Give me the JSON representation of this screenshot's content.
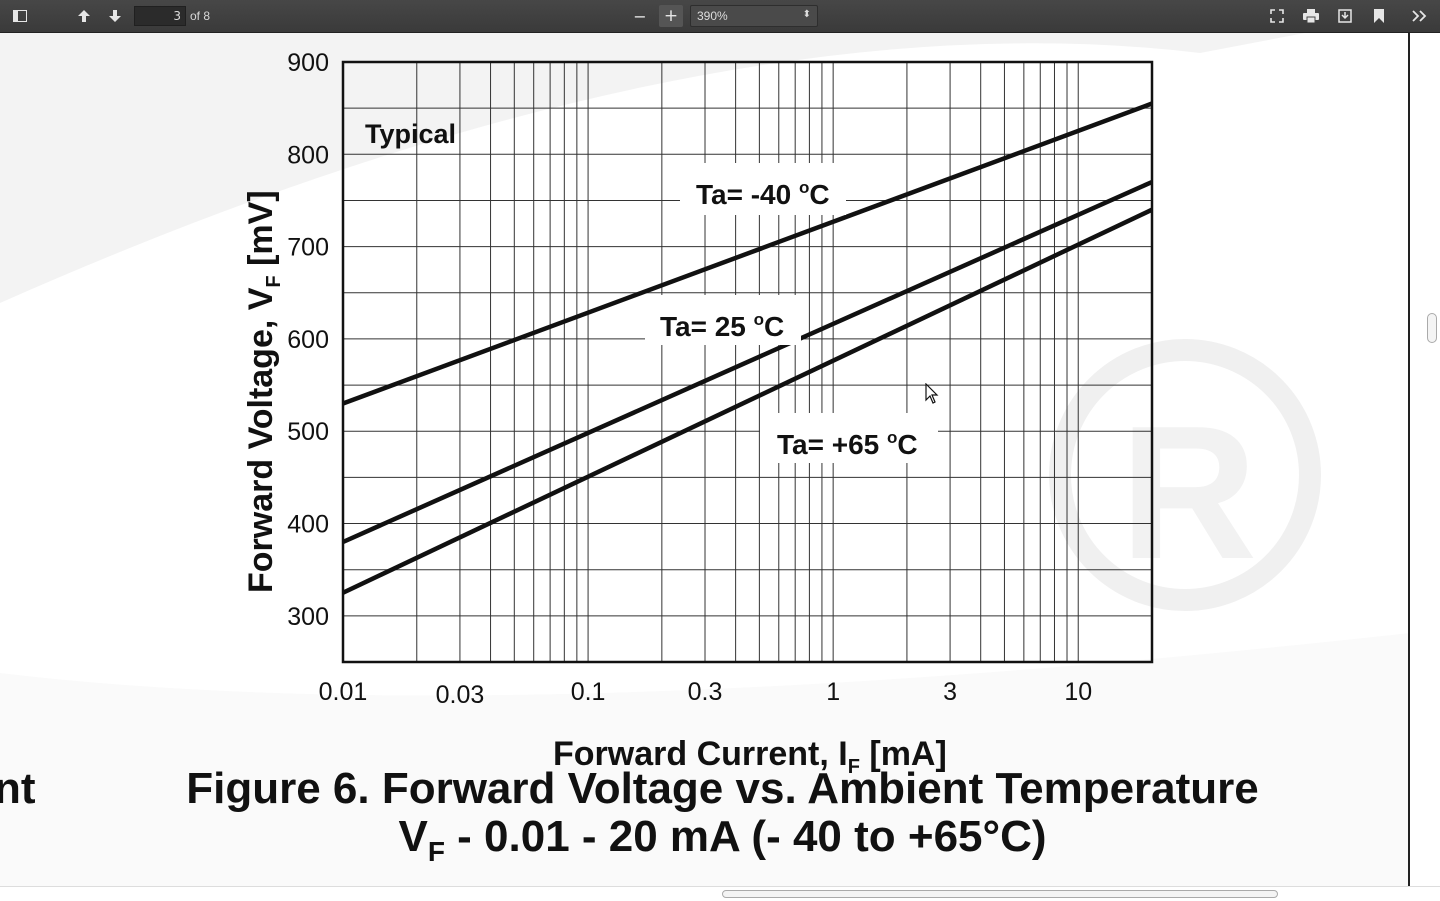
{
  "toolbar": {
    "page_current": "3",
    "page_count_text": "of 8",
    "zoom_value": "390%",
    "zoom_out_label": "−",
    "zoom_in_label": "+",
    "icons": [
      "sidebar-toggle-icon",
      "previous-page-icon",
      "next-page-icon",
      "presentation-mode-icon",
      "print-icon",
      "download-icon",
      "bookmark-icon",
      "tools-icon"
    ]
  },
  "document": {
    "figure_title": "Figure 6. Forward Voltage vs. Ambient Temperature",
    "figure_subtitle_main": "V",
    "figure_subtitle_sub": "F",
    "figure_subtitle_rest": " -  0.01 - 20 mA (- 40 to +65°C)",
    "left_fragment": "nt"
  },
  "chart_data": {
    "type": "line",
    "title": "",
    "annotation": "Typical",
    "xlabel_main": "Forward Current, I",
    "xlabel_sub": "F",
    "xlabel_unit": " [mA]",
    "ylabel_main": "Forward Voltage, V",
    "ylabel_sub": "F",
    "ylabel_unit": " [mV]",
    "xscale": "log",
    "xlim": [
      0.01,
      20
    ],
    "ylim": [
      250,
      900
    ],
    "xticks": [
      0.01,
      0.03,
      0.1,
      0.3,
      1,
      3,
      10
    ],
    "xtick_labels": [
      "0.01",
      "0.03",
      "0.1",
      "0.3",
      "1",
      "3",
      "10"
    ],
    "yticks": [
      300,
      400,
      500,
      600,
      700,
      800,
      900
    ],
    "ytick_labels": [
      "300",
      "400",
      "500",
      "600",
      "700",
      "800",
      "900"
    ],
    "grid": true,
    "series": [
      {
        "label_main": "Ta= -40 ",
        "label_sup": "o",
        "label_unit": "C",
        "x": [
          0.01,
          20
        ],
        "y": [
          530,
          855
        ]
      },
      {
        "label_main": "Ta= 25 ",
        "label_sup": "o",
        "label_unit": "C",
        "x": [
          0.01,
          20
        ],
        "y": [
          380,
          770
        ]
      },
      {
        "label_main": "Ta= +65 ",
        "label_sup": "o",
        "label_unit": "C",
        "x": [
          0.01,
          20
        ],
        "y": [
          325,
          740
        ]
      }
    ]
  }
}
